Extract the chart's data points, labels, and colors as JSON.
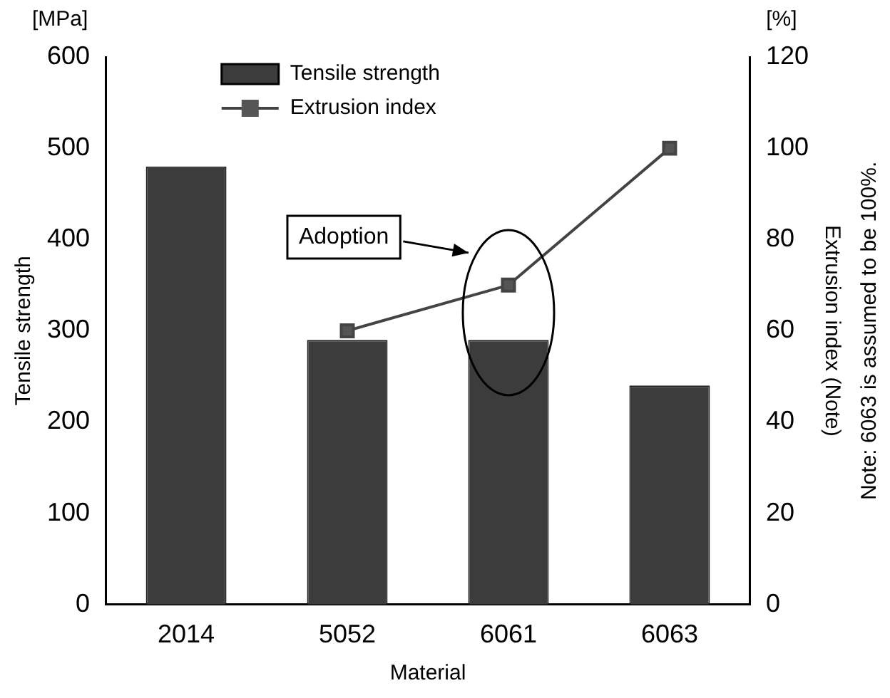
{
  "chart_data": {
    "type": "bar",
    "xlabel": "Material",
    "ylabel": "Tensile strength",
    "y2label": "Extrusion index (Note)",
    "categories": [
      "2014",
      "5052",
      "6061",
      "6063"
    ],
    "series": [
      {
        "name": "Tensile strength",
        "color": "#3c3c3c",
        "values": [
          480,
          290,
          290,
          240
        ]
      },
      {
        "name": "Extrusion index",
        "type": "line",
        "axis": "y2",
        "color": "#444444",
        "values": [
          null,
          60,
          70,
          100
        ]
      }
    ],
    "ylim": [
      0,
      600
    ],
    "yticks": [
      0,
      100,
      200,
      300,
      400,
      500,
      600
    ],
    "y2lim": [
      0,
      120
    ],
    "y2ticks": [
      0,
      20,
      40,
      60,
      80,
      100,
      120
    ],
    "marker": "square",
    "legend": "top left",
    "grid": false,
    "annotations": [
      "[MPa]",
      "[%]",
      "Note: 6063 is assumed to be 100%.",
      "Adoption"
    ]
  }
}
